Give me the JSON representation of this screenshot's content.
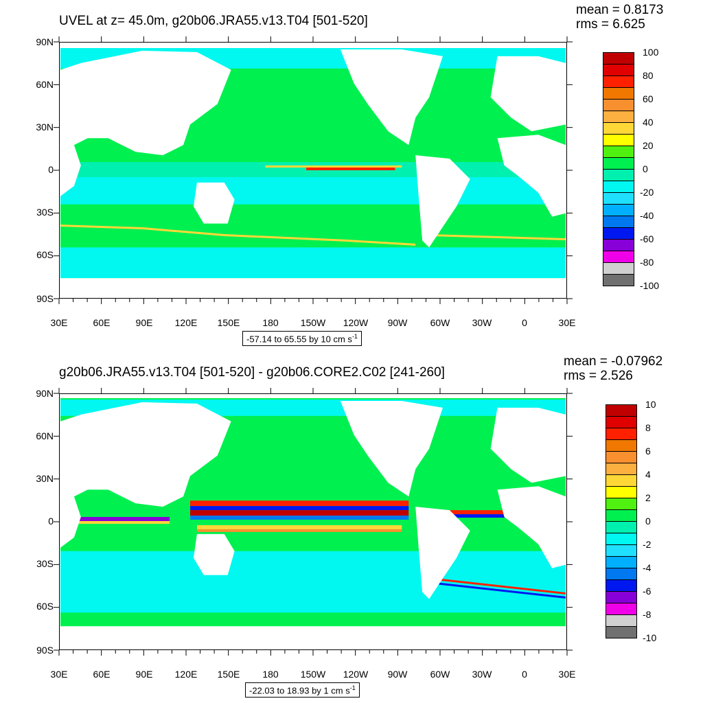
{
  "panels": [
    {
      "title": "UVEL at z=  45.0m, g20b06.JRA55.v13.T04 [501-520]",
      "mean": "mean = 0.8173",
      "rms": "rms = 6.625",
      "range_main": "-57.14 to 65.55 by 10 cm s",
      "range_sup": "-1",
      "colorbar_labels": [
        "100",
        "80",
        "60",
        "40",
        "20",
        "0",
        "-20",
        "-40",
        "-60",
        "-80",
        "-100"
      ]
    },
    {
      "title": "g20b06.JRA55.v13.T04 [501-520] - g20b06.CORE2.C02 [241-260]",
      "mean": "mean = -0.07962",
      "rms": "rms = 2.526",
      "range_main": "-22.03 to 18.93 by 1 cm s",
      "range_sup": "-1",
      "colorbar_labels": [
        "10",
        "8",
        "6",
        "4",
        "2",
        "0",
        "-2",
        "-4",
        "-6",
        "-8",
        "-10"
      ]
    }
  ],
  "axes": {
    "y_ticks": [
      "90N",
      "60N",
      "30N",
      "0",
      "30S",
      "60S",
      "90S"
    ],
    "x_ticks": [
      "30E",
      "60E",
      "90E",
      "120E",
      "150E",
      "180",
      "150W",
      "120W",
      "90W",
      "60W",
      "30W",
      "0",
      "30E"
    ]
  },
  "colormap": [
    "#c00000",
    "#e00000",
    "#ff2000",
    "#f07800",
    "#f89030",
    "#fcb040",
    "#ffd838",
    "#ffff00",
    "#50f010",
    "#00f050",
    "#00f0b0",
    "#00f8f0",
    "#20e0ff",
    "#00b0ff",
    "#0078f0",
    "#0018f0",
    "#8800d8",
    "#f000e8",
    "#d0d0d0",
    "#707070"
  ],
  "colors": {
    "land": "#ffffff",
    "ocean_base": "#00f050",
    "frame": "#000000"
  }
}
